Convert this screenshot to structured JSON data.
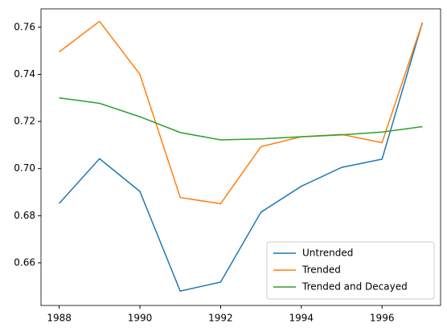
{
  "chart_data": {
    "type": "line",
    "x": [
      1988,
      1989,
      1990,
      1991,
      1992,
      1993,
      1994,
      1995,
      1996,
      1997
    ],
    "series": [
      {
        "name": "Untrended",
        "color": "#1f77b4",
        "values": [
          0.6852,
          0.7042,
          0.6903,
          0.648,
          0.6518,
          0.6815,
          0.6925,
          0.7005,
          0.704,
          0.762
        ]
      },
      {
        "name": "Trended",
        "color": "#ff7f0e",
        "values": [
          0.7495,
          0.7625,
          0.74,
          0.6877,
          0.6851,
          0.7093,
          0.7135,
          0.7145,
          0.711,
          0.762
        ]
      },
      {
        "name": "Trended and Decayed",
        "color": "#2ca02c",
        "values": [
          0.73,
          0.7277,
          0.722,
          0.7153,
          0.7122,
          0.7126,
          0.7135,
          0.7143,
          0.7155,
          0.7178
        ]
      }
    ],
    "xlim": [
      1987.55,
      1997.45
    ],
    "xticks": [
      1988,
      1990,
      1992,
      1994,
      1996
    ],
    "ylim": [
      0.6419,
      0.7678
    ],
    "yticks": [
      0.66,
      0.68,
      {
        "value": 0.7,
        "label": "0.70"
      },
      0.72,
      0.74,
      0.76
    ],
    "legend": "lower right"
  }
}
